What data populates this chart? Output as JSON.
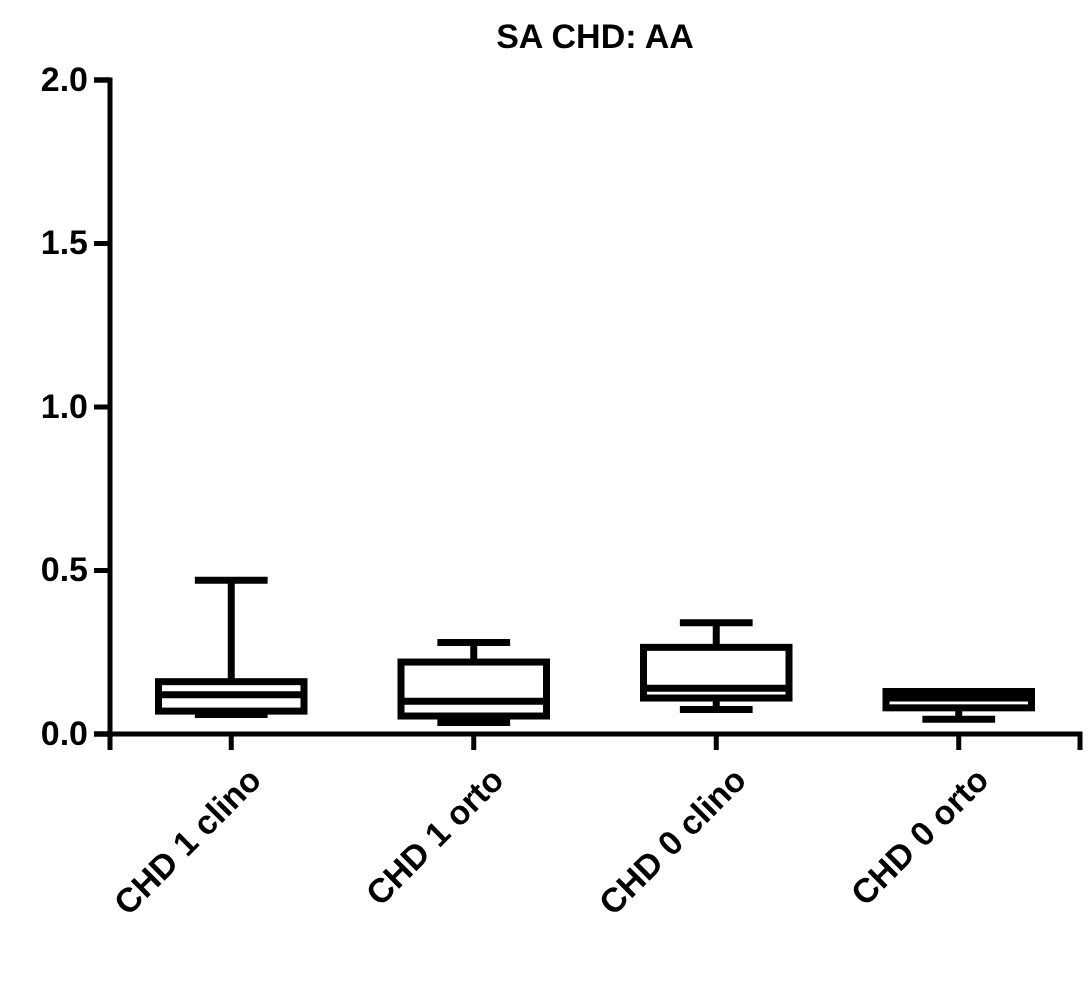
{
  "chart_data": {
    "type": "box",
    "title": "SA  CHD: AA",
    "categories": [
      "CHD 1 clino",
      "CHD 1 orto",
      "CHD 0 clino",
      "CHD 0 orto"
    ],
    "boxes": [
      {
        "low": 0.06,
        "q1": 0.07,
        "median": 0.12,
        "q3": 0.16,
        "high": 0.47
      },
      {
        "low": 0.035,
        "q1": 0.055,
        "median": 0.1,
        "q3": 0.22,
        "high": 0.28
      },
      {
        "low": 0.075,
        "q1": 0.11,
        "median": 0.14,
        "q3": 0.265,
        "high": 0.34
      },
      {
        "low": 0.045,
        "q1": 0.08,
        "median": 0.11,
        "q3": 0.13,
        "high": 0.13
      }
    ],
    "ylim": [
      0,
      2
    ],
    "yticks": [
      {
        "value": 0,
        "label": "0.0"
      },
      {
        "value": 0.5,
        "label": "0.5"
      },
      {
        "value": 1,
        "label": "1.0"
      },
      {
        "value": 1.5,
        "label": "1.5"
      },
      {
        "value": 2,
        "label": "2.0"
      }
    ],
    "grid": false
  }
}
